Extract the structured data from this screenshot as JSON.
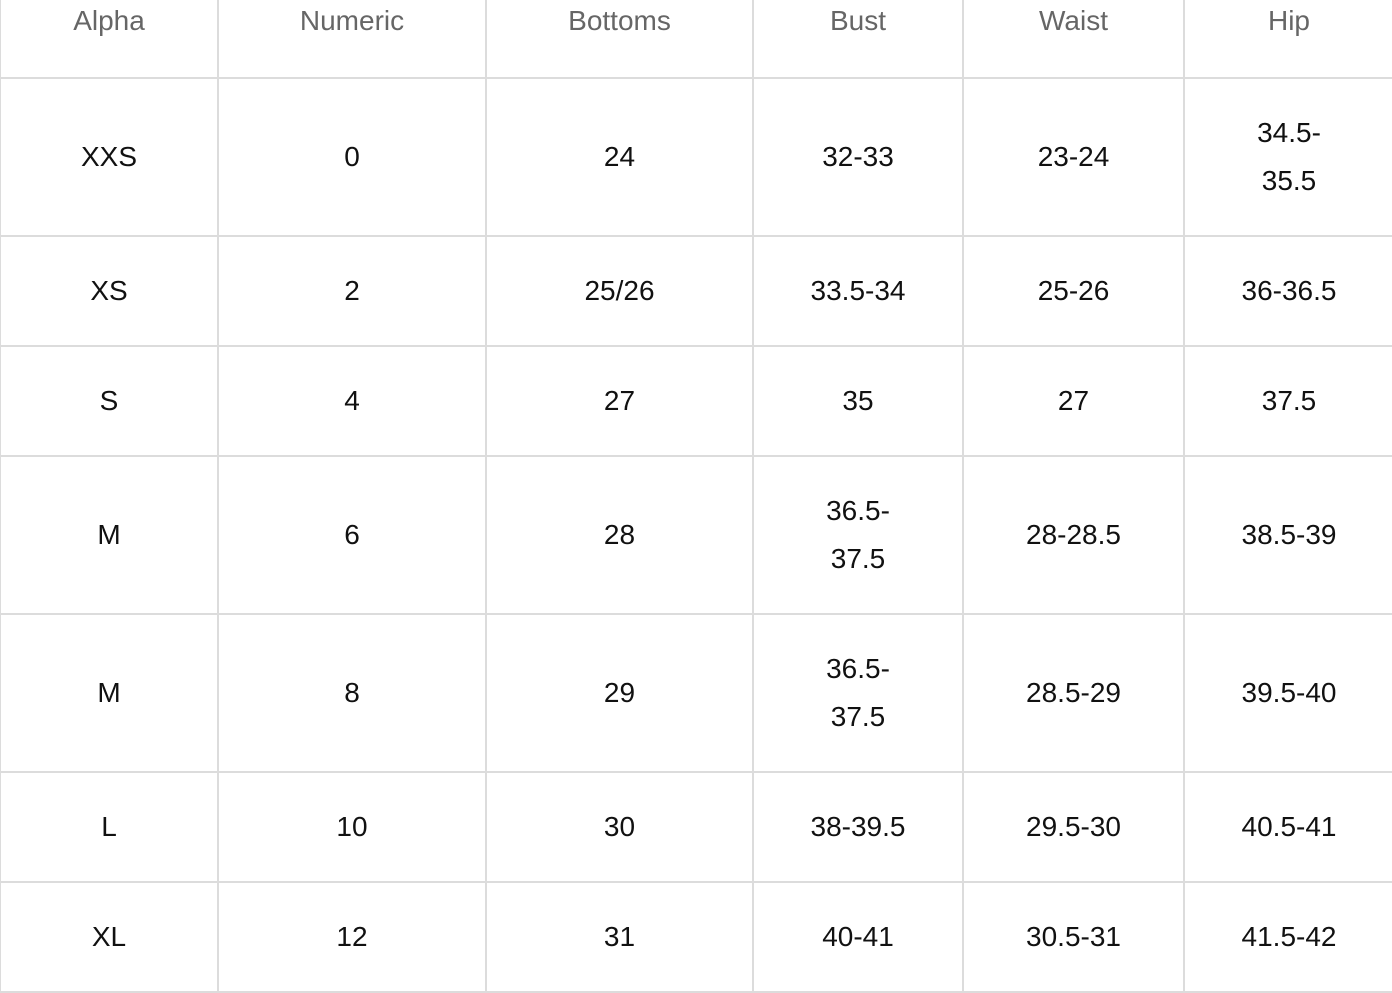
{
  "headers": [
    "Alpha",
    "Numeric",
    "Bottoms",
    "Bust",
    "Waist",
    "Hip"
  ],
  "rows": [
    [
      "XXS",
      "0",
      "24",
      "32-33",
      "23-24",
      "34.5-35.5"
    ],
    [
      "XS",
      "2",
      "25/26",
      "33.5-34",
      "25-26",
      "36-36.5"
    ],
    [
      "S",
      "4",
      "27",
      "35",
      "27",
      "37.5"
    ],
    [
      "M",
      "6",
      "28",
      "36.5-37.5",
      "28-28.5",
      "38.5-39"
    ],
    [
      "M",
      "8",
      "29",
      "36.5-37.5",
      "28.5-29",
      "39.5-40"
    ],
    [
      "L",
      "10",
      "30",
      "38-39.5",
      "29.5-30",
      "40.5-41"
    ],
    [
      "XL",
      "12",
      "31",
      "40-41",
      "30.5-31",
      "41.5-42"
    ]
  ]
}
